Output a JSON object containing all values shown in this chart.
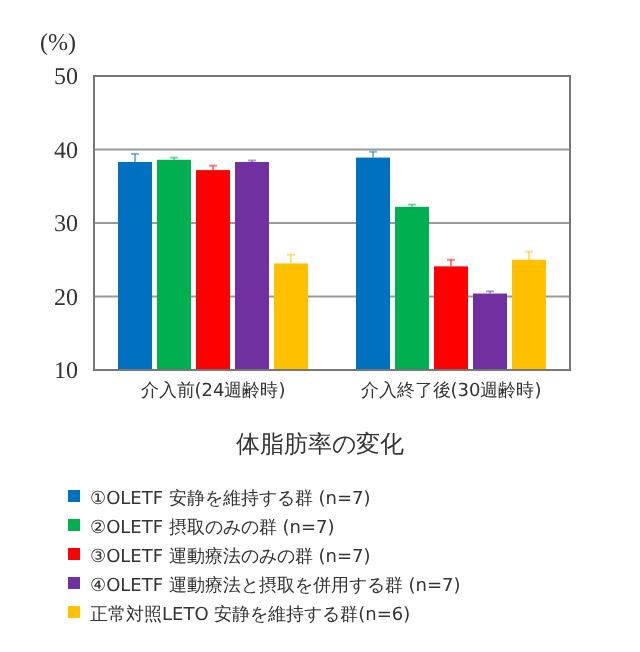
{
  "chart_data": {
    "type": "bar",
    "title": "体脂肪率の変化",
    "ylabel": "(%)",
    "categories": [
      "介入前(24週齢時)",
      "介入終了後(30週齢時)"
    ],
    "series": [
      {
        "name": "①OLETF 安静を維持する群 (n=7)",
        "color": "#0070c0",
        "values": [
          38.3,
          38.9
        ],
        "errors": [
          [
            38.3,
            39.4
          ],
          [
            38.9,
            39.7
          ]
        ]
      },
      {
        "name": "②OLETF 摂取のみの群 (n=7)",
        "color": "#00b050",
        "values": [
          38.6,
          32.2
        ],
        "errors": [
          [
            38.6,
            38.9
          ],
          [
            32.2,
            32.5
          ]
        ]
      },
      {
        "name": "③OLETF 運動療法のみの群 (n=7)",
        "color": "#ff0000",
        "values": [
          37.2,
          24.1
        ],
        "errors": [
          [
            37.2,
            37.8
          ],
          [
            24.1,
            25.0
          ]
        ]
      },
      {
        "name": "④OLETF 運動療法と摂取を併用する群 (n=7)",
        "color": "#7030a0",
        "values": [
          38.3,
          20.4
        ],
        "errors": [
          [
            38.3,
            38.5
          ],
          [
            20.4,
            20.7
          ]
        ]
      },
      {
        "name": "正常対照LETO  安静を維持する群(n=6)",
        "color": "#ffc000",
        "values": [
          24.5,
          25.0
        ],
        "errors": [
          [
            24.5,
            25.7
          ],
          [
            25.0,
            26.1
          ]
        ]
      }
    ],
    "ylim": [
      10,
      50
    ],
    "yticks": [
      10,
      20,
      30,
      40,
      50
    ],
    "grid": "y",
    "legend": "bottom"
  }
}
